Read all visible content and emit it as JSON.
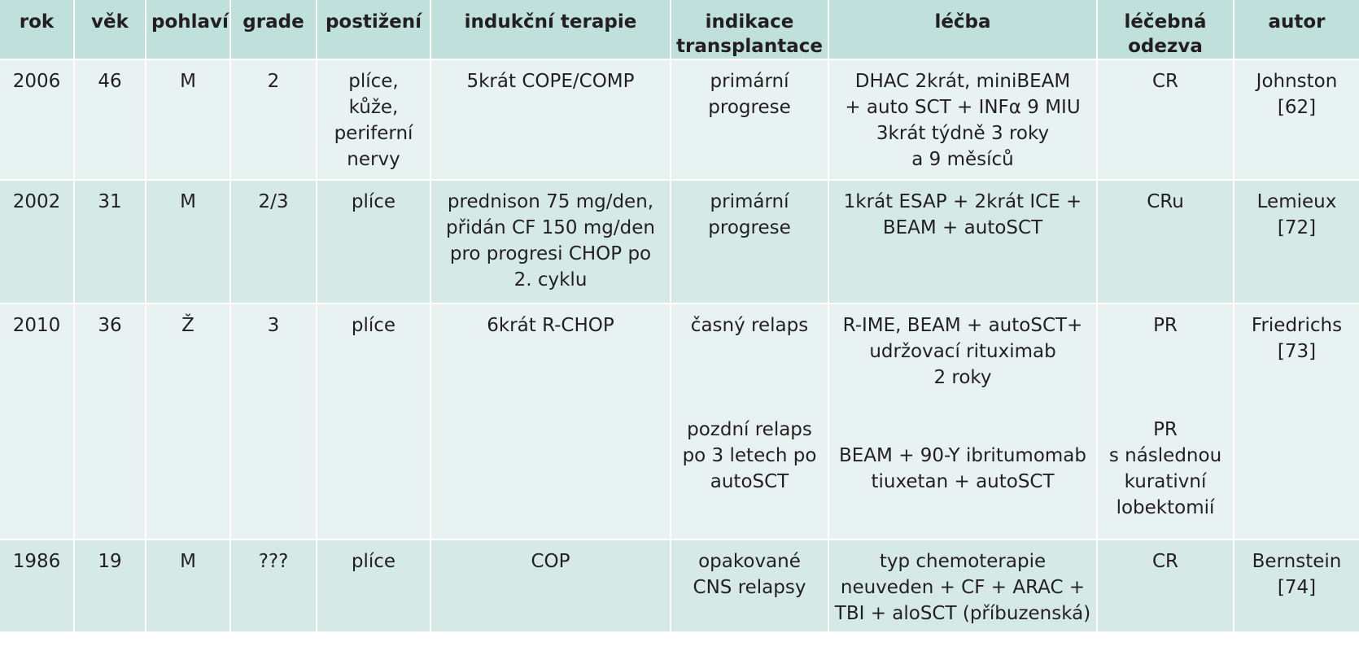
{
  "headers": [
    "rok",
    "věk",
    "pohlaví",
    "grade",
    "postižení",
    "indukční terapie",
    "indikace\ntransplantace",
    "léčba",
    "léčebná\nodezva",
    "autor"
  ],
  "rows": [
    {
      "rok": "2006",
      "vek": "46",
      "pohlavi": "M",
      "grade": "2",
      "postizeni": "plíce,\nkůže,\nperiferní\nnervy",
      "indukcni_terapie": "5krát COPE/COMP",
      "indikace": "primární\nprogrese",
      "lecba": "DHAC 2krát, miniBEAM\n+ auto SCT + INFα 9 MIU\n3krát týdně 3 roky\na 9 měsíců",
      "odezva": "CR",
      "autor": "Johnston\n[62]"
    },
    {
      "rok": "2002",
      "vek": "31",
      "pohlavi": "M",
      "grade": "2/3",
      "postizeni": "plíce",
      "indukcni_terapie": "prednison 75 mg/den,\npřidán CF 150 mg/den\npro progresi CHOP po\n2. cyklu",
      "indikace": "primární\nprogrese",
      "lecba": "1krát ESAP + 2krát ICE +\nBEAM + autoSCT",
      "odezva": "CRu",
      "autor": "Lemieux\n[72]"
    },
    {
      "rok": "2010",
      "vek": "36",
      "pohlavi": "Ž",
      "grade": "3",
      "postizeni": "plíce",
      "indukcni_terapie": "6krát R-CHOP",
      "indikace_a": "časný relaps",
      "indikace_b": "pozdní relaps\npo 3 letech po\nautoSCT",
      "lecba_a": "R-IME, BEAM + autoSCT+\nudržovací rituximab\n2 roky",
      "lecba_b": "BEAM + 90-Y ibritumomab\ntiuxetan + autoSCT",
      "odezva_a": "PR",
      "odezva_b": "PR\ns následnou\nkurativní\nlobektomií",
      "autor": "Friedrichs\n[73]"
    },
    {
      "rok": "1986",
      "vek": "19",
      "pohlavi": "M",
      "grade": "???",
      "postizeni": "plíce",
      "indukcni_terapie": "COP",
      "indikace": "opakované\nCNS relapsy",
      "lecba": "typ chemoterapie\nneuveden + CF + ARAC +\nTBI + aloSCT (příbuzenská)",
      "odezva": "CR",
      "autor": "Bernstein\n[74]"
    }
  ]
}
